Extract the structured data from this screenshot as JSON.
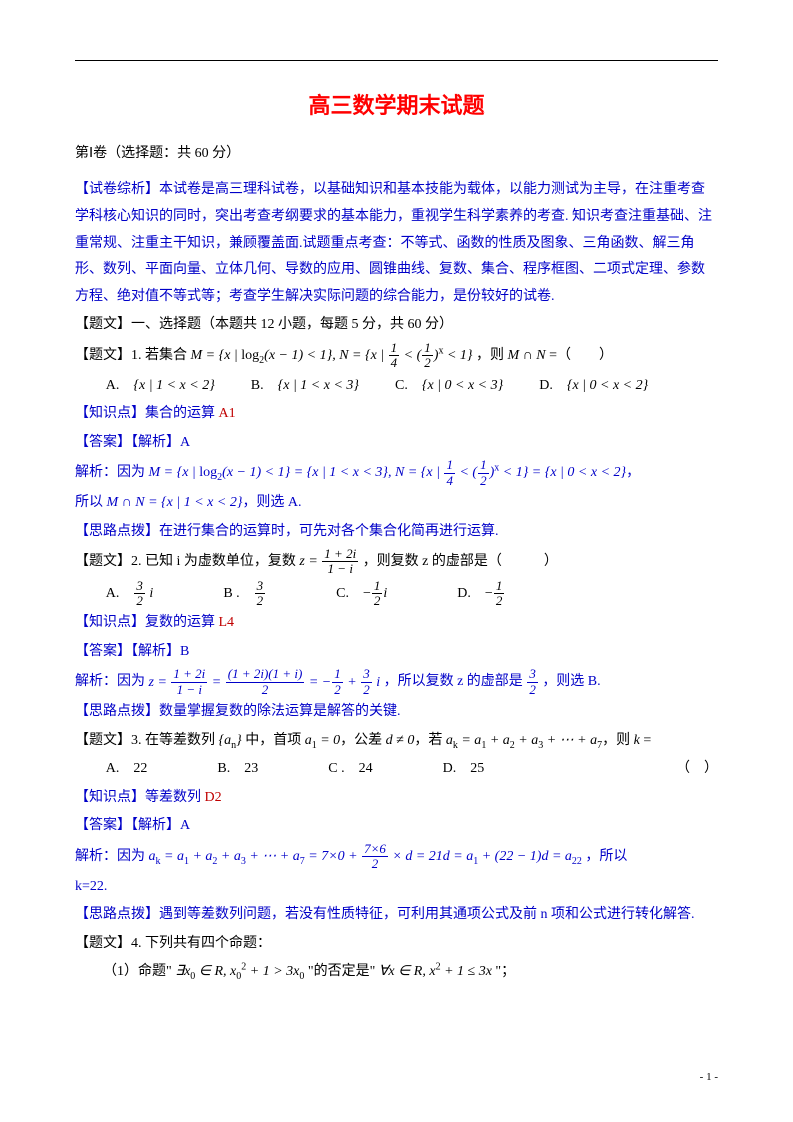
{
  "page": {
    "title": "高三数学期末试题",
    "section": "第Ⅰ卷（选择题：共 60 分）",
    "analysis_label": "【试卷综析】",
    "analysis": "本试卷是高三理科试卷，以基础知识和基本技能为载体，以能力测试为主导，在注重考查学科核心知识的同时，突出考查考纲要求的基本能力，重视学生科学素养的考查. 知识考查注重基础、注重常规、注重主干知识，兼顾覆盖面.试题重点考查：不等式、函数的性质及图象、三角函数、解三角形、数列、平面向量、立体几何、导数的应用、圆锥曲线、复数、集合、程序框图、二项式定理、参数方程、绝对值不等式等；考查学生解决实际问题的综合能力，是份较好的试卷.",
    "heading_qw": "【题文】一、选择题（本题共 12 小题，每题 5 分，共 60 分）"
  },
  "q1": {
    "stem_pre": "【题文】1. 若集合 ",
    "stem_math": "M = {x | log₂(x−1) < 1}, N = {x | ¼ < (½)ˣ < 1}",
    "stem_post": "，则 M ∩ N =（　　）",
    "optA": "A.　{x | 1 < x < 2}",
    "optB": "B.　{x | 1 < x < 3}",
    "optC": "C.　{x | 0 < x < 3}",
    "optD": "D.　{x | 0 < x < 2}",
    "kp_label": "【知识点】",
    "kp": "集合的运算 ",
    "kp_code": "A1",
    "ans_label": "【答案】【解析】",
    "ans": "A",
    "sol_label": "解析：因为 ",
    "sol_body": "M = {x | log₂(x−1) < 1} = {x | 1 < x < 3}, N = {x | ¼ < (½)ˣ < 1} = {x | 0 < x < 2}，",
    "sol_tail": "所以 M ∩ N = {x | 1 < x < 2}，则选 A.",
    "tip_label": "【思路点拨】",
    "tip": "在进行集合的运算时，可先对各个集合化简再进行运算."
  },
  "q2": {
    "stem_pre": "【题文】2. 已知 i 为虚数单位，复数 ",
    "stem_post": "，则复数 z 的虚部是（　　　）",
    "optA_pre": "A.　",
    "optB_pre": "B .　",
    "optC_pre": "C.　",
    "optD_pre": "D.　",
    "kp_label": "【知识点】",
    "kp": "复数的运算 ",
    "kp_code": "L4",
    "ans_label": "【答案】【解析】",
    "ans": "B",
    "sol_label": "解析：因为 ",
    "sol_mid": "，所以复数 z 的虚部是 ",
    "sol_tail": "，则选 B.",
    "tip_label": "【思路点拨】",
    "tip": "数量掌握复数的除法运算是解答的关键."
  },
  "q3": {
    "stem_pre": "【题文】3. 在等差数列",
    "stem_mid": "中，首项 a₁ = 0，公差 d ≠ 0，若 aₖ = a₁ + a₂ + a₃ + ⋯ + a₇，则 k =",
    "paren": "（　）",
    "optA": "A.　22",
    "optB": "B.　23",
    "optC": "C .　24",
    "optD": "D.　25",
    "kp_label": "【知识点】",
    "kp": "等差数列 ",
    "kp_code": "D2",
    "ans_label": "【答案】【解析】",
    "ans": "A",
    "sol_label": "解析：因为 ",
    "sol_tail": "，所以",
    "k_line": "k=22.",
    "tip_label": "【思路点拨】",
    "tip": "遇到等差数列问题，若没有性质特征，可利用其通项公式及前 n 项和公式进行转化解答."
  },
  "q4": {
    "stem": "【题文】4. 下列共有四个命题：",
    "item1_pre": "（1）命题\" ",
    "item1_mid": " \"的否定是\" ",
    "item1_post": " \"；"
  },
  "frac": {
    "one_four": {
      "n": "1",
      "d": "4"
    },
    "one_two": {
      "n": "1",
      "d": "2"
    },
    "three_two": {
      "n": "3",
      "d": "2"
    },
    "seven_six_two": {
      "n": "7×6",
      "d": "2"
    }
  },
  "footer": {
    "page": "- 1 -"
  },
  "colors": {
    "title": "#ff0000",
    "blue": "#0000c8",
    "red": "#c00000",
    "text": "#000000",
    "bg": "#ffffff"
  }
}
